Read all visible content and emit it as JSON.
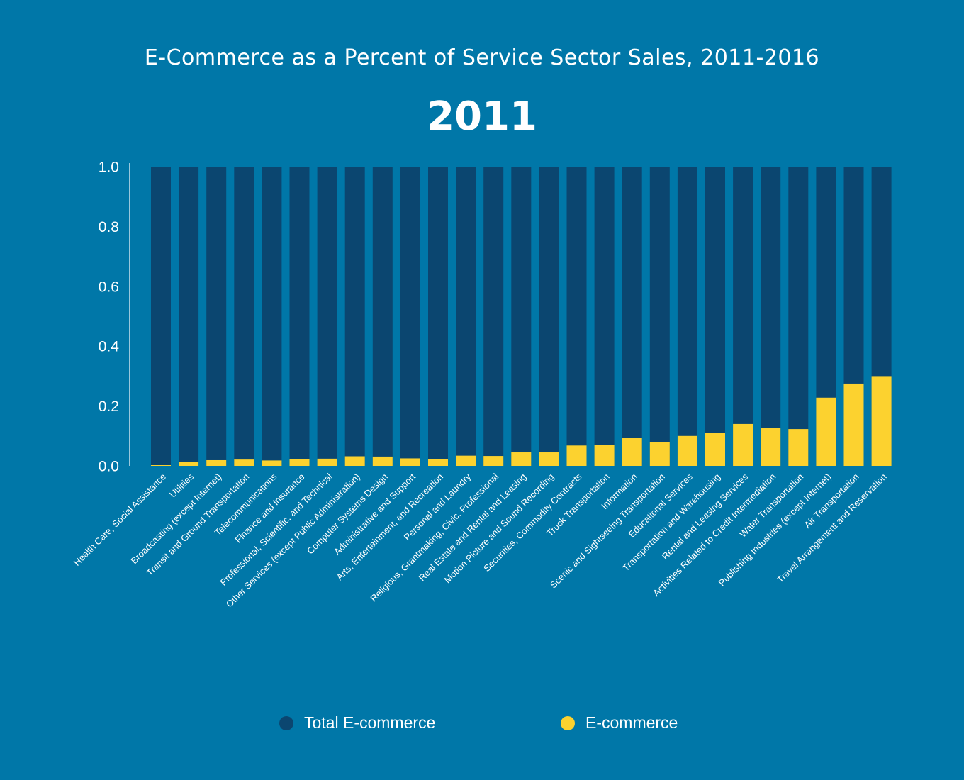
{
  "chart_data": {
    "type": "bar",
    "title": "E-Commerce as a Percent of Service Sector Sales, 2011-2016",
    "subtitle": "2011",
    "xlabel": "",
    "ylabel": "",
    "ylim": [
      0,
      1.0
    ],
    "yticks": [
      "0.0",
      "0.2",
      "0.4",
      "0.6",
      "0.8",
      "1.0"
    ],
    "categories": [
      "Health Care, Social Assistance",
      "Utilities",
      "Broadcasting (except Internet)",
      "Transit and Ground Transportation",
      "Telecommunications",
      "Finance and Insurance",
      "Professional, Scientific, and Technical",
      "Other Services (except Public Administration)",
      "Computer Systems Design",
      "Administrative and Support",
      "Arts, Entertainment, and Recreation",
      "Personal and Laundry",
      "Religious, Grantmaking, Civic, Professional",
      "Real Estate and Rental and Leasing",
      "Motion Picture and Sound Recording",
      "Securities, Commodity Contracts",
      "Truck Transportation",
      "Information",
      "Scenic and Sightseeing Transportation",
      "Educational Services",
      "Transportation and Warehousing",
      "Rental and Leasing Services",
      "Activities Related to Credit Intermediation",
      "Water Transportation",
      "Publishing Industries (except Internet)",
      "Air Transportation",
      "Travel Arrangement and Reservation"
    ],
    "series": [
      {
        "name": "Total E-commerce",
        "color": "#0b4670",
        "values": [
          1,
          1,
          1,
          1,
          1,
          1,
          1,
          1,
          1,
          1,
          1,
          1,
          1,
          1,
          1,
          1,
          1,
          1,
          1,
          1,
          1,
          1,
          1,
          1,
          1,
          1,
          1
        ]
      },
      {
        "name": "E-commerce",
        "color": "#fcd22f",
        "values": [
          0.002,
          0.012,
          0.019,
          0.021,
          0.018,
          0.022,
          0.024,
          0.032,
          0.031,
          0.025,
          0.023,
          0.034,
          0.033,
          0.045,
          0.045,
          0.068,
          0.069,
          0.093,
          0.079,
          0.1,
          0.109,
          0.14,
          0.127,
          0.123,
          0.228,
          0.275,
          0.3
        ]
      }
    ],
    "grid": false,
    "legend_position": "bottom"
  }
}
